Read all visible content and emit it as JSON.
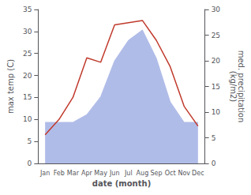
{
  "chart_data": {
    "type": "line",
    "xlabel": "date (month)",
    "ylabel": "max temp (C)",
    "y2label": "med. precipitation\n(kg/m2)",
    "categories": [
      "Jan",
      "Feb",
      "Mar",
      "Apr",
      "May",
      "Jun",
      "Jul",
      "Aug",
      "Sep",
      "Oct",
      "Nov",
      "Dec"
    ],
    "series": [
      {
        "type": "area",
        "axis": "y2",
        "color": "#b0bce8",
        "values": [
          8,
          8,
          8,
          9.5,
          13,
          20,
          24,
          26,
          20.5,
          12,
          8,
          8
        ]
      },
      {
        "type": "line",
        "color": "#c0392b",
        "values": [
          6.5,
          10.0,
          15.0,
          24.0,
          23.0,
          31.5,
          32.0,
          32.5,
          28.0,
          22.0,
          13.0,
          8.5
        ]
      }
    ],
    "ylim": [
      0,
      35
    ],
    "yticks": [
      0,
      5,
      10,
      15,
      20,
      25,
      30,
      35
    ],
    "y2lim": [
      0,
      30
    ],
    "y2ticks": [
      0,
      5,
      10,
      15,
      20,
      25,
      30
    ],
    "grid": false
  }
}
